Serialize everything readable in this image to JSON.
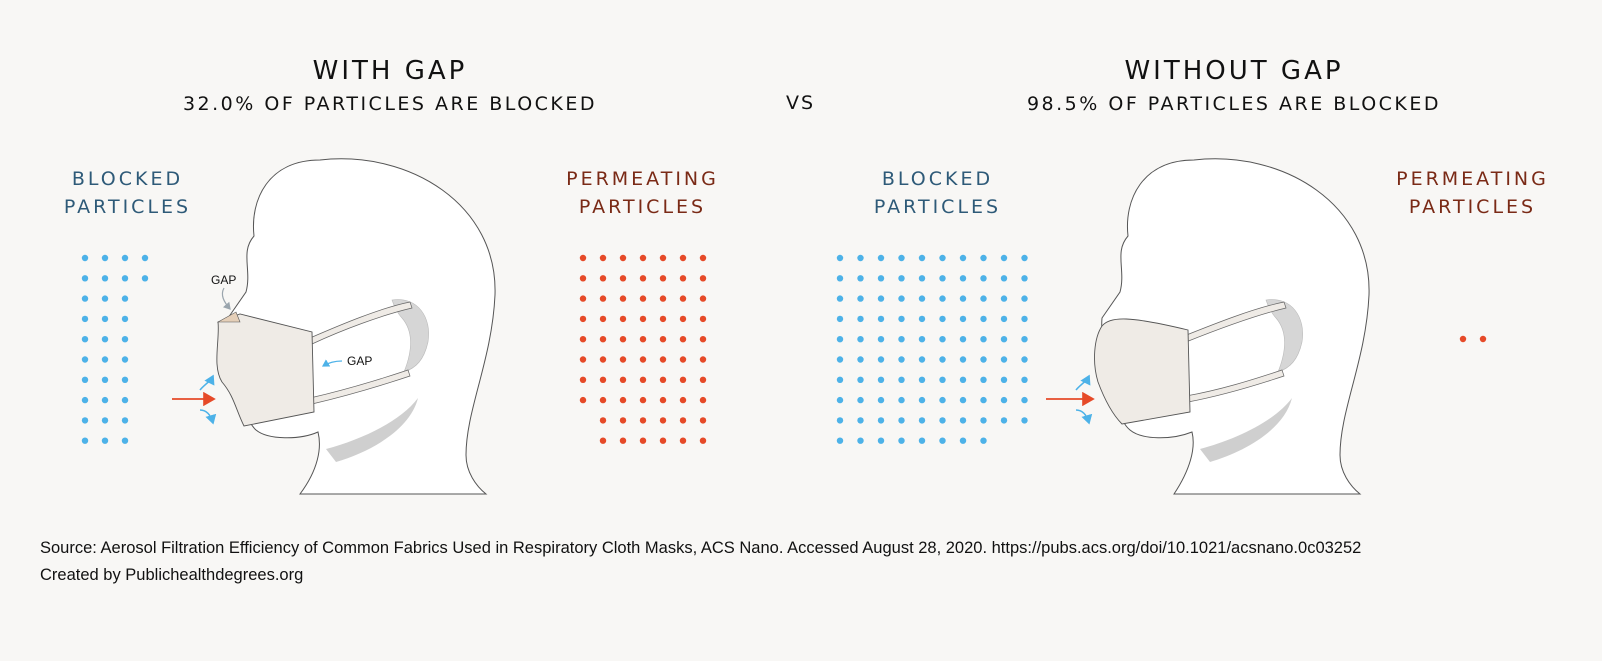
{
  "left_panel": {
    "title": "WITH GAP",
    "subtitle": "32.0% OF PARTICLES ARE BLOCKED",
    "blocked_label": [
      "BLOCKED",
      "PARTICLES"
    ],
    "permeating_label": [
      "PERMEATING",
      "PARTICLES"
    ],
    "gap_callout_nose": "GAP",
    "gap_callout_side": "GAP",
    "blocked_percent": 32.0
  },
  "vs": "VS",
  "right_panel": {
    "title": "WITHOUT GAP",
    "subtitle": "98.5% OF PARTICLES ARE BLOCKED",
    "blocked_label": [
      "BLOCKED",
      "PARTICLES"
    ],
    "permeating_label": [
      "PERMEATING",
      "PARTICLES"
    ],
    "blocked_percent": 98.5
  },
  "colors": {
    "blocked": "#4db2e8",
    "permeating": "#e64a28",
    "blocked_text": "#2e5a78",
    "permeating_text": "#7a2a16",
    "mask": "#efebe6"
  },
  "footer": {
    "source": "Source: Aerosol Filtration Efficiency of Common Fabrics Used in Respiratory Cloth Masks, ACS Nano. Accessed August 28, 2020. https://pubs.acs.org/doi/10.1021/acsnano.0c03252",
    "credit": "Created by Publichealthdegrees.org"
  }
}
